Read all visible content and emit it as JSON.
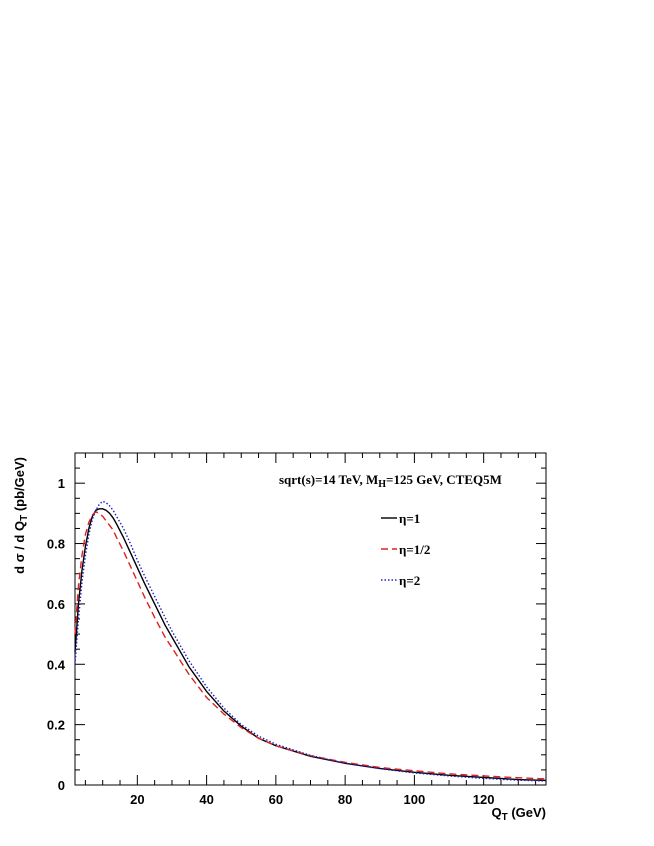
{
  "chart_data": {
    "type": "line",
    "title": "",
    "annotation": {
      "prefix": "sqrt(s)=14 TeV, M",
      "sub": "H",
      "suffix": "=125 GeV, CTEQ5M"
    },
    "xlabel": {
      "main": "Q",
      "sub": "T",
      "rest": " (GeV)"
    },
    "ylabel": "d σ / d Q",
    "ylabel_sub": "T",
    "ylabel_rest": " (pb/GeV)",
    "xlim": [
      2,
      138
    ],
    "ylim": [
      0,
      1.1
    ],
    "xticks": [
      20,
      40,
      60,
      80,
      100,
      120
    ],
    "yticks": [
      0,
      0.2,
      0.4,
      0.6,
      0.8,
      1
    ],
    "ytick_labels": [
      "0",
      "0.2",
      "0.4",
      "0.6",
      "0.8",
      "1"
    ],
    "legend_position": "upper-right",
    "series": [
      {
        "name": "η=1",
        "color": "#000000",
        "dash": "solid",
        "x": [
          2,
          3,
          4,
          5,
          6,
          7,
          8,
          9,
          10,
          11,
          12,
          13,
          14,
          16,
          18,
          20,
          22,
          25,
          28,
          30,
          35,
          40,
          45,
          50,
          55,
          60,
          70,
          80,
          90,
          100,
          110,
          120,
          130,
          138
        ],
        "y": [
          0.44,
          0.6,
          0.71,
          0.79,
          0.85,
          0.89,
          0.91,
          0.915,
          0.915,
          0.91,
          0.9,
          0.885,
          0.865,
          0.82,
          0.77,
          0.72,
          0.67,
          0.6,
          0.53,
          0.49,
          0.39,
          0.31,
          0.245,
          0.195,
          0.155,
          0.13,
          0.095,
          0.072,
          0.055,
          0.042,
          0.032,
          0.025,
          0.018,
          0.015
        ]
      },
      {
        "name": "η=1/2",
        "color": "#e02020",
        "dash": "dashed",
        "x": [
          2,
          3,
          4,
          5,
          6,
          7,
          8,
          9,
          10,
          11,
          12,
          13,
          14,
          16,
          18,
          20,
          22,
          25,
          28,
          30,
          35,
          40,
          45,
          50,
          55,
          60,
          70,
          80,
          90,
          100,
          110,
          120,
          130,
          138
        ],
        "y": [
          0.5,
          0.66,
          0.76,
          0.83,
          0.87,
          0.895,
          0.905,
          0.9,
          0.89,
          0.875,
          0.86,
          0.845,
          0.82,
          0.775,
          0.725,
          0.675,
          0.625,
          0.555,
          0.49,
          0.455,
          0.365,
          0.29,
          0.235,
          0.19,
          0.155,
          0.13,
          0.097,
          0.075,
          0.058,
          0.047,
          0.037,
          0.03,
          0.024,
          0.02
        ]
      },
      {
        "name": "η=2",
        "color": "#2020c0",
        "dash": "dotted",
        "x": [
          2,
          3,
          4,
          5,
          6,
          7,
          8,
          9,
          10,
          11,
          12,
          13,
          14,
          16,
          18,
          20,
          22,
          25,
          28,
          30,
          35,
          40,
          45,
          50,
          55,
          60,
          70,
          80,
          90,
          100,
          110,
          120,
          130,
          138
        ],
        "y": [
          0.4,
          0.55,
          0.67,
          0.76,
          0.83,
          0.88,
          0.91,
          0.93,
          0.94,
          0.935,
          0.925,
          0.91,
          0.89,
          0.85,
          0.8,
          0.745,
          0.695,
          0.625,
          0.555,
          0.51,
          0.41,
          0.325,
          0.255,
          0.2,
          0.162,
          0.135,
          0.098,
          0.072,
          0.054,
          0.04,
          0.03,
          0.022,
          0.016,
          0.013
        ]
      }
    ]
  }
}
